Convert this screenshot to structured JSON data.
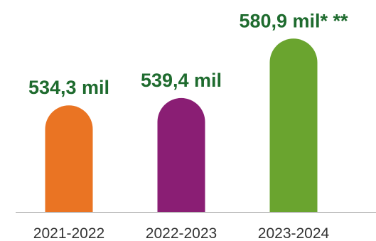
{
  "chart_data": {
    "type": "bar",
    "categories": [
      "2021-2022",
      "2022-2023",
      "2023-2024"
    ],
    "values": [
      534.3,
      539.4,
      580.9
    ],
    "value_labels": [
      "534,3 mil",
      "539,4 mil",
      "580,9 mil* **"
    ],
    "bar_colors": [
      "#ea7423",
      "#8a1e74",
      "#6aa42f"
    ],
    "label_color": "#1e6b2e",
    "axis_color": "#999999",
    "ylim": [
      460,
      585
    ],
    "title": "",
    "xlabel": "",
    "ylabel": "",
    "grid": false,
    "legend": "none"
  }
}
